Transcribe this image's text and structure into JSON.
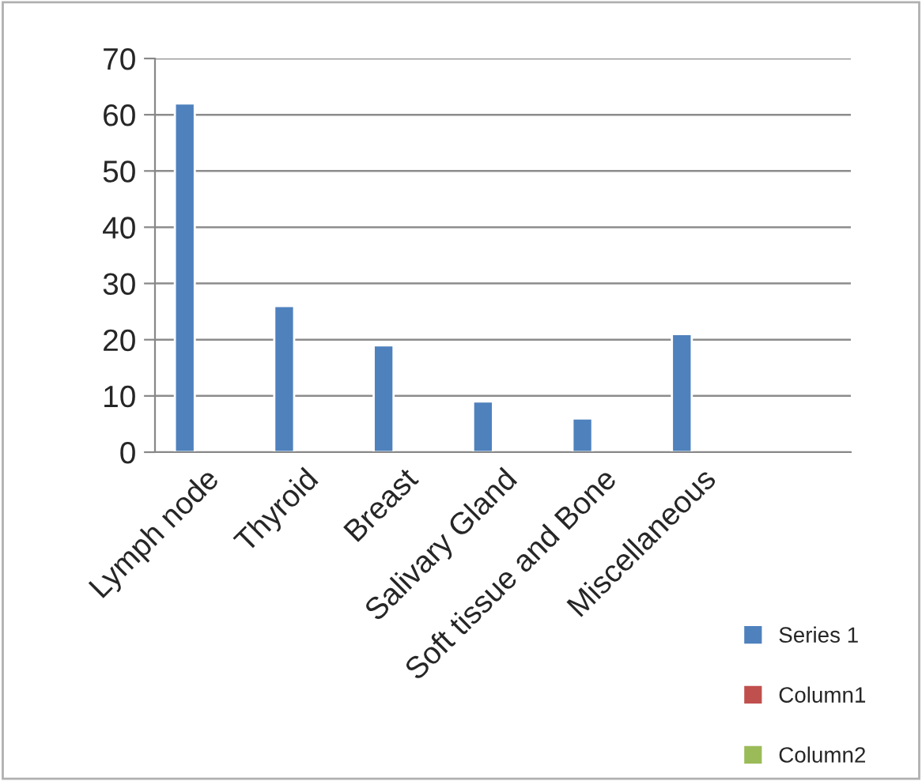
{
  "chart_data": {
    "type": "bar",
    "categories": [
      "Lymph node",
      "Thyroid",
      "Breast",
      "Salivary Gland",
      "Soft tissue and Bone",
      "Miscellaneous",
      null
    ],
    "series": [
      {
        "name": "Series 1",
        "color": "#4f81bd",
        "values": [
          62,
          26,
          19,
          9,
          6,
          21,
          null
        ]
      },
      {
        "name": "Column1",
        "color": "#c0504d",
        "values": [
          null,
          null,
          null,
          null,
          null,
          null,
          null
        ]
      },
      {
        "name": "Column2",
        "color": "#9bbb59",
        "values": [
          null,
          null,
          null,
          null,
          null,
          null,
          null
        ]
      }
    ],
    "ylim": [
      0,
      70
    ],
    "yticks": [
      0,
      10,
      20,
      30,
      40,
      50,
      60,
      70
    ],
    "grid": "y",
    "legend": "right"
  }
}
